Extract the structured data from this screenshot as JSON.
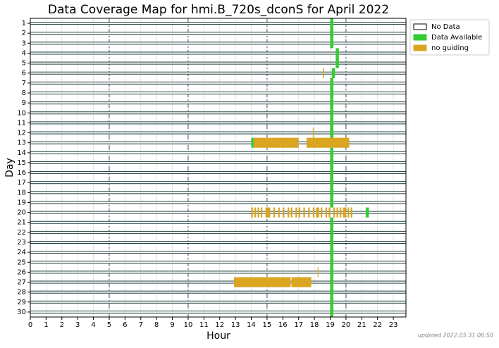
{
  "chart_data": {
    "type": "coverage",
    "title": "Data Coverage Map for hmi.B_720s_dconS for April 2022",
    "x_label": "Hour",
    "y_label": "Day",
    "xlim": [
      0,
      23.8
    ],
    "xticks": [
      0,
      1,
      2,
      3,
      4,
      5,
      6,
      7,
      8,
      9,
      10,
      11,
      12,
      13,
      14,
      15,
      16,
      17,
      18,
      19,
      20,
      21,
      22,
      23
    ],
    "ylim": [
      30.5,
      0.5
    ],
    "yticks": [
      1,
      2,
      3,
      4,
      5,
      6,
      7,
      8,
      9,
      10,
      11,
      12,
      13,
      14,
      15,
      16,
      17,
      18,
      19,
      20,
      21,
      22,
      23,
      24,
      25,
      26,
      27,
      28,
      29,
      30
    ],
    "vlines": [
      5,
      10,
      15,
      20
    ],
    "grid": true,
    "no_data": {
      "name": "No Data",
      "color": "#ffffff"
    },
    "series": [
      {
        "name": "Data Available",
        "color": "#33cc33",
        "segments": [
          [
            1,
            19.0,
            19.2
          ],
          [
            2,
            19.0,
            19.2
          ],
          [
            3,
            19.0,
            19.2
          ],
          [
            4,
            19.35,
            19.55
          ],
          [
            5,
            19.35,
            19.55
          ],
          [
            6,
            19.1,
            19.3
          ],
          [
            7,
            19.0,
            19.2
          ],
          [
            8,
            19.0,
            19.2
          ],
          [
            9,
            19.0,
            19.2
          ],
          [
            10,
            19.0,
            19.2
          ],
          [
            11,
            19.0,
            19.2
          ],
          [
            12,
            19.0,
            19.2
          ],
          [
            13,
            14.0,
            14.15
          ],
          [
            14,
            19.0,
            19.2
          ],
          [
            15,
            19.0,
            19.2
          ],
          [
            16,
            19.0,
            19.2
          ],
          [
            17,
            19.0,
            19.2
          ],
          [
            18,
            19.0,
            19.2
          ],
          [
            19,
            19.0,
            19.2
          ],
          [
            20,
            21.25,
            21.45
          ],
          [
            21,
            19.0,
            19.2
          ],
          [
            22,
            19.0,
            19.2
          ],
          [
            23,
            19.0,
            19.2
          ],
          [
            24,
            19.0,
            19.2
          ],
          [
            25,
            19.0,
            19.2
          ],
          [
            26,
            19.0,
            19.2
          ],
          [
            27,
            19.0,
            19.2
          ],
          [
            28,
            19.0,
            19.2
          ],
          [
            29,
            19.0,
            19.2
          ],
          [
            30,
            19.0,
            19.2
          ]
        ]
      },
      {
        "name": "no guiding",
        "color": "#daa520",
        "segments": [
          [
            6,
            18.55,
            18.62
          ],
          [
            12,
            17.9,
            17.95
          ],
          [
            13,
            14.15,
            17.0
          ],
          [
            13,
            17.5,
            20.2
          ],
          [
            26,
            18.2,
            18.25
          ],
          [
            27,
            12.9,
            16.5
          ],
          [
            27,
            16.55,
            17.8
          ],
          [
            20,
            14.0,
            14.1
          ],
          [
            20,
            14.2,
            14.3
          ],
          [
            20,
            14.4,
            14.5
          ],
          [
            20,
            14.6,
            14.7
          ],
          [
            20,
            14.9,
            15.2
          ],
          [
            20,
            15.4,
            15.5
          ],
          [
            20,
            15.7,
            15.8
          ],
          [
            20,
            16.0,
            16.1
          ],
          [
            20,
            16.3,
            16.4
          ],
          [
            20,
            16.5,
            16.6
          ],
          [
            20,
            16.8,
            16.9
          ],
          [
            20,
            17.0,
            17.1
          ],
          [
            20,
            17.3,
            17.4
          ],
          [
            20,
            17.6,
            17.7
          ],
          [
            20,
            17.9,
            18.0
          ],
          [
            20,
            18.1,
            18.3
          ],
          [
            20,
            18.4,
            18.5
          ],
          [
            20,
            18.7,
            18.8
          ],
          [
            20,
            18.9,
            19.0
          ],
          [
            20,
            19.2,
            19.3
          ],
          [
            20,
            19.4,
            19.5
          ],
          [
            20,
            19.6,
            19.7
          ],
          [
            20,
            19.8,
            20.0
          ],
          [
            20,
            20.1,
            20.2
          ],
          [
            20,
            20.3,
            20.4
          ]
        ]
      }
    ],
    "footer": "updated 2022.05.31 06:50"
  }
}
